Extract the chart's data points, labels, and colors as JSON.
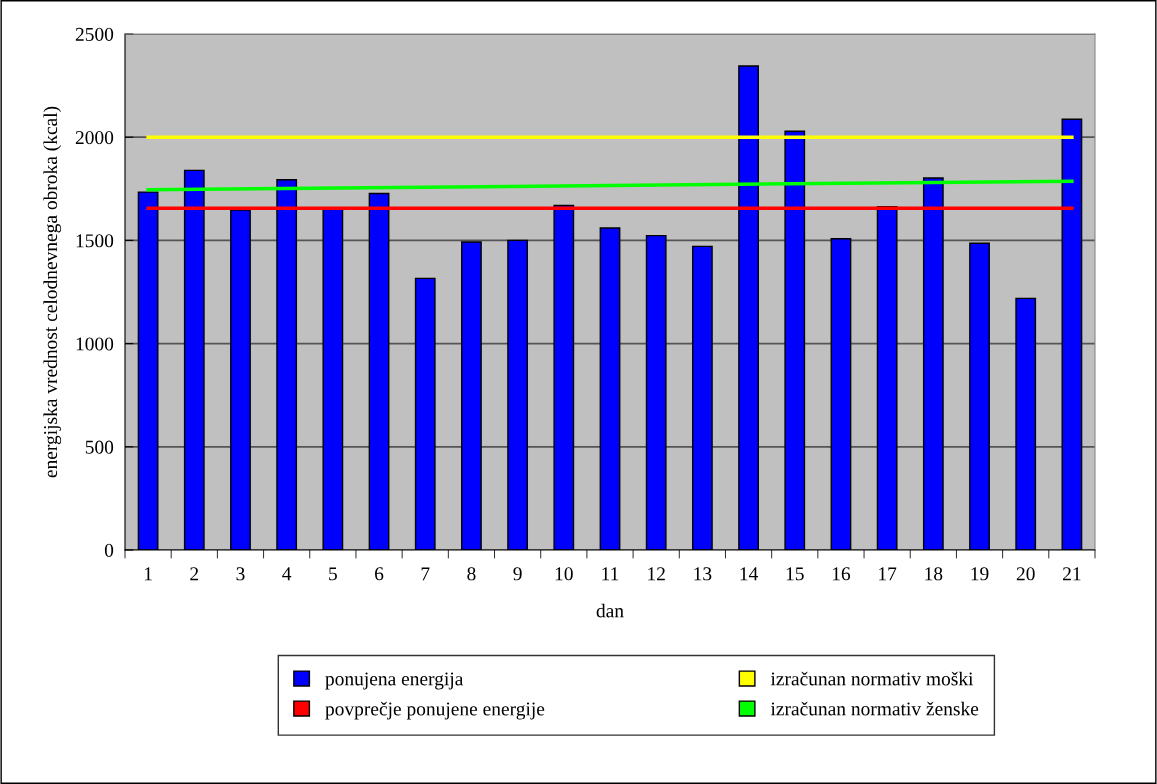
{
  "chart_data": {
    "type": "bar",
    "xlabel": "dan",
    "ylabel": "energijska vrednost celodnevnega obroka (kcal)",
    "categories": [
      "1",
      "2",
      "3",
      "4",
      "5",
      "6",
      "7",
      "8",
      "9",
      "10",
      "11",
      "12",
      "13",
      "14",
      "15",
      "16",
      "17",
      "18",
      "19",
      "20",
      "21"
    ],
    "series": [
      {
        "name": "ponujena energija",
        "color": "#0000ff",
        "values": [
          1734,
          1839,
          1647,
          1794,
          1656,
          1727,
          1316,
          1492,
          1500,
          1669,
          1560,
          1523,
          1471,
          2345,
          2029,
          1508,
          1663,
          1802,
          1486,
          1219,
          2087
        ]
      },
      {
        "name": "povprečje ponujene energije",
        "type": "line",
        "color": "#ff0000",
        "x": [
          "1",
          "21"
        ],
        "values": [
          1656,
          1656
        ]
      },
      {
        "name": "izračunan normativ moški",
        "type": "line",
        "color": "#ffff00",
        "x": [
          "1",
          "21"
        ],
        "values": [
          2000,
          2000
        ]
      },
      {
        "name": "izračunan normativ ženske",
        "type": "line",
        "color": "#00ff00",
        "x": [
          "1",
          "21"
        ],
        "values": [
          1745,
          1787
        ]
      }
    ],
    "ylim": [
      0,
      2500
    ],
    "yticks": [
      0,
      500,
      1000,
      1500,
      2000,
      2500
    ],
    "grid": "y",
    "legend": "bottom"
  }
}
